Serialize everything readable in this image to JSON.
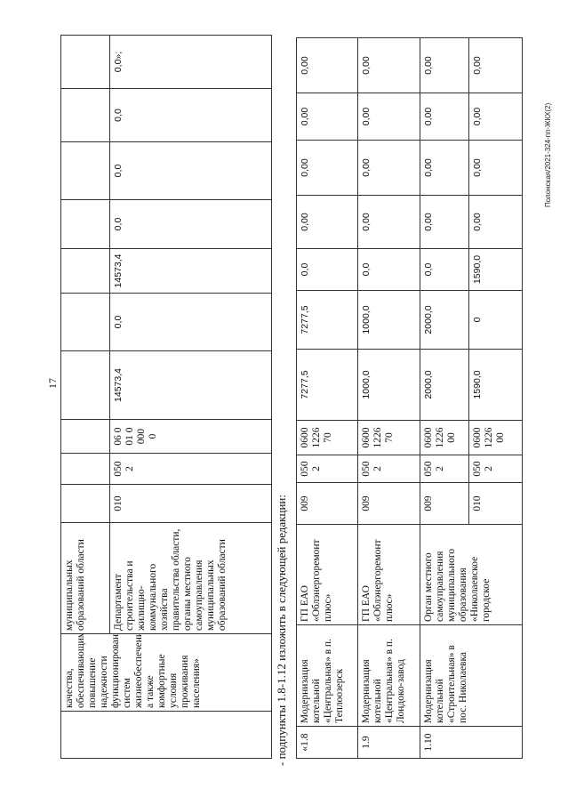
{
  "page_number": "17",
  "intro_text": "- подпункты 1.8-1.12 изложить в следующей редакции:",
  "footer_text": "Полонская/2021-324-пп-ЖКХ(2)",
  "top_table": {
    "number": "",
    "name": "качества, обеспечивающими повышение надежности функционирования систем жизнеобеспечения, а также комфортные условия проживания населения»",
    "rows": [
      {
        "executor": "муниципальных образований области",
        "values": [
          "",
          "",
          "",
          "",
          "",
          "",
          "",
          "",
          "",
          ""
        ]
      },
      {
        "executor": "Департамент строительства и жилищно-коммунального хозяйства правительства области, органы местного самоуправления муниципальных образований области",
        "values": [
          "010",
          "0502",
          "06 0 01 0000 0",
          "14573,4",
          "0,0",
          "14573,4",
          "0,0",
          "0,0",
          "0,0",
          "0,0»;"
        ]
      }
    ]
  },
  "bottom_table": {
    "items": [
      {
        "number": "«1.8",
        "name": "Модернизация котельной «Центральная» в п. Теплоозерск",
        "subrows": [
          {
            "executor": "ГП ЕАО «Облэнергоремонт плюс»",
            "values": [
              "009",
              "0502",
              "0600122670",
              "7277,5",
              "7277,5",
              "0,0",
              "0,00",
              "0,00",
              "0,00",
              "0,00"
            ]
          }
        ]
      },
      {
        "number": "1.9",
        "name": "Модернизация котельной «Центральная» в п. Лондоко-завод",
        "subrows": [
          {
            "executor": "ГП ЕАО «Облэнергоремонт плюс»",
            "values": [
              "009",
              "0502",
              "0600122670",
              "1000,0",
              "1000,0",
              "0,0",
              "0,00",
              "0,00",
              "0,00",
              "0,00"
            ]
          }
        ]
      },
      {
        "number": "1.10",
        "name": "Модернизация котельной «Строительная» в пос. Николаевка",
        "executor": "Орган местного самоуправления муниципального образования «Николаевское городское",
        "subrows": [
          {
            "values": [
              "009",
              "0502",
              "0600122600",
              "2000,0",
              "2000,0",
              "0,0",
              "0,00",
              "0,00",
              "0,00",
              "0,00"
            ]
          },
          {
            "values": [
              "010",
              "0502",
              "0600122600",
              "1590,0",
              "0",
              "1590,0",
              "0,00",
              "0,00",
              "0,00",
              "0,00"
            ]
          }
        ]
      }
    ]
  }
}
